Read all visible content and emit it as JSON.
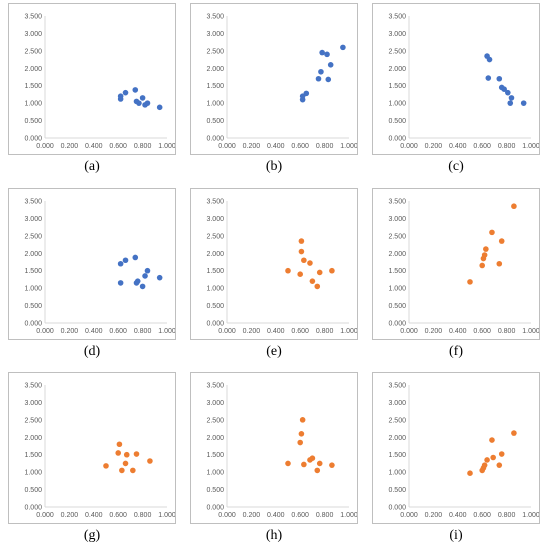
{
  "colors": {
    "blue": "#4472c4",
    "orange": "#ed7d31",
    "axis": "#d9d9d9",
    "tick_text": "#595959"
  },
  "chart_data": [
    {
      "type": "scatter",
      "caption": "(a)",
      "color": "blue",
      "xlim": [
        0,
        1.0
      ],
      "ylim": [
        0,
        3.5
      ],
      "xticks": [
        "0.000",
        "0.200",
        "0.400",
        "0.600",
        "0.800",
        "1.000"
      ],
      "yticks": [
        "0.000",
        "0.500",
        "1.000",
        "1.500",
        "2.000",
        "2.500",
        "3.000",
        "3.500"
      ],
      "x": [
        0.62,
        0.62,
        0.66,
        0.74,
        0.75,
        0.77,
        0.8,
        0.82,
        0.84,
        0.94
      ],
      "y": [
        1.12,
        1.2,
        1.3,
        1.38,
        1.05,
        1.0,
        1.15,
        0.95,
        1.0,
        0.88
      ]
    },
    {
      "type": "scatter",
      "caption": "(b)",
      "color": "blue",
      "xlim": [
        0,
        1.0
      ],
      "ylim": [
        0,
        3.5
      ],
      "xticks": [
        "0.000",
        "0.200",
        "0.400",
        "0.600",
        "0.800",
        "1.000"
      ],
      "yticks": [
        "0.000",
        "0.500",
        "1.000",
        "1.500",
        "2.000",
        "2.500",
        "3.000",
        "3.500"
      ],
      "x": [
        0.62,
        0.62,
        0.65,
        0.75,
        0.77,
        0.78,
        0.82,
        0.83,
        0.85,
        0.95
      ],
      "y": [
        1.1,
        1.2,
        1.28,
        1.7,
        1.9,
        2.45,
        2.4,
        1.68,
        2.1,
        2.6
      ]
    },
    {
      "type": "scatter",
      "caption": "(c)",
      "color": "blue",
      "xlim": [
        0,
        1.0
      ],
      "ylim": [
        0,
        3.5
      ],
      "xticks": [
        "0.000",
        "0.200",
        "0.400",
        "0.600",
        "0.800",
        "1.000"
      ],
      "yticks": [
        "0.000",
        "0.500",
        "1.000",
        "1.500",
        "2.000",
        "2.500",
        "3.000",
        "3.500"
      ],
      "x": [
        0.64,
        0.66,
        0.65,
        0.74,
        0.76,
        0.78,
        0.81,
        0.83,
        0.84,
        0.94
      ],
      "y": [
        2.35,
        2.25,
        1.72,
        1.7,
        1.45,
        1.4,
        1.3,
        1.0,
        1.15,
        1.0
      ]
    },
    {
      "type": "scatter",
      "caption": "(d)",
      "color": "blue",
      "xlim": [
        0,
        1.0
      ],
      "ylim": [
        0,
        3.5
      ],
      "xticks": [
        "0.000",
        "0.200",
        "0.400",
        "0.600",
        "0.800",
        "1.000"
      ],
      "yticks": [
        "0.000",
        "0.500",
        "1.000",
        "1.500",
        "2.000",
        "2.500",
        "3.000",
        "3.500"
      ],
      "x": [
        0.62,
        0.62,
        0.66,
        0.74,
        0.75,
        0.76,
        0.8,
        0.82,
        0.84,
        0.94
      ],
      "y": [
        1.7,
        1.15,
        1.8,
        1.88,
        1.15,
        1.2,
        1.05,
        1.35,
        1.5,
        1.3
      ]
    },
    {
      "type": "scatter",
      "caption": "(e)",
      "color": "orange",
      "xlim": [
        0,
        1.0
      ],
      "ylim": [
        0,
        3.5
      ],
      "xticks": [
        "0.000",
        "0.200",
        "0.400",
        "0.600",
        "0.800",
        "1.000"
      ],
      "yticks": [
        "0.000",
        "0.500",
        "1.000",
        "1.500",
        "2.000",
        "2.500",
        "3.000",
        "3.500"
      ],
      "x": [
        0.5,
        0.6,
        0.61,
        0.61,
        0.63,
        0.68,
        0.7,
        0.74,
        0.76,
        0.86
      ],
      "y": [
        1.5,
        1.4,
        2.05,
        2.35,
        1.8,
        1.72,
        1.2,
        1.05,
        1.45,
        1.5
      ]
    },
    {
      "type": "scatter",
      "caption": "(f)",
      "color": "orange",
      "xlim": [
        0,
        1.0
      ],
      "ylim": [
        0,
        3.5
      ],
      "xticks": [
        "0.000",
        "0.200",
        "0.400",
        "0.600",
        "0.800",
        "1.000"
      ],
      "yticks": [
        "0.000",
        "0.500",
        "1.000",
        "1.500",
        "2.000",
        "2.500",
        "3.000",
        "3.500"
      ],
      "x": [
        0.5,
        0.6,
        0.61,
        0.62,
        0.63,
        0.68,
        0.74,
        0.76,
        0.86
      ],
      "y": [
        1.18,
        1.65,
        1.85,
        1.95,
        2.12,
        2.6,
        1.7,
        2.35,
        3.35
      ]
    },
    {
      "type": "scatter",
      "caption": "(g)",
      "color": "orange",
      "xlim": [
        0,
        1.0
      ],
      "ylim": [
        0,
        3.5
      ],
      "xticks": [
        "0.000",
        "0.200",
        "0.400",
        "0.600",
        "0.800",
        "1.000"
      ],
      "yticks": [
        "0.000",
        "0.500",
        "1.000",
        "1.500",
        "2.000",
        "2.500",
        "3.000",
        "3.500"
      ],
      "x": [
        0.5,
        0.6,
        0.61,
        0.63,
        0.66,
        0.67,
        0.72,
        0.75,
        0.86
      ],
      "y": [
        1.18,
        1.55,
        1.8,
        1.05,
        1.25,
        1.5,
        1.05,
        1.52,
        1.32
      ]
    },
    {
      "type": "scatter",
      "caption": "(h)",
      "color": "orange",
      "xlim": [
        0,
        1.0
      ],
      "ylim": [
        0,
        3.5
      ],
      "xticks": [
        "0.000",
        "0.200",
        "0.400",
        "0.600",
        "0.800",
        "1.000"
      ],
      "yticks": [
        "0.000",
        "0.500",
        "1.000",
        "1.500",
        "2.000",
        "2.500",
        "3.000",
        "3.500"
      ],
      "x": [
        0.5,
        0.6,
        0.61,
        0.62,
        0.63,
        0.68,
        0.7,
        0.74,
        0.76,
        0.86
      ],
      "y": [
        1.25,
        1.85,
        2.1,
        2.5,
        1.22,
        1.35,
        1.4,
        1.05,
        1.25,
        1.2
      ]
    },
    {
      "type": "scatter",
      "caption": "(i)",
      "color": "orange",
      "xlim": [
        0,
        1.0
      ],
      "ylim": [
        0,
        3.5
      ],
      "xticks": [
        "0.000",
        "0.200",
        "0.400",
        "0.600",
        "0.800",
        "1.000"
      ],
      "yticks": [
        "0.000",
        "0.500",
        "1.000",
        "1.500",
        "2.000",
        "2.500",
        "3.000",
        "3.500"
      ],
      "x": [
        0.5,
        0.6,
        0.61,
        0.62,
        0.64,
        0.68,
        0.69,
        0.74,
        0.76,
        0.86
      ],
      "y": [
        0.97,
        1.05,
        1.12,
        1.2,
        1.35,
        1.92,
        1.42,
        1.2,
        1.52,
        2.12
      ]
    }
  ]
}
